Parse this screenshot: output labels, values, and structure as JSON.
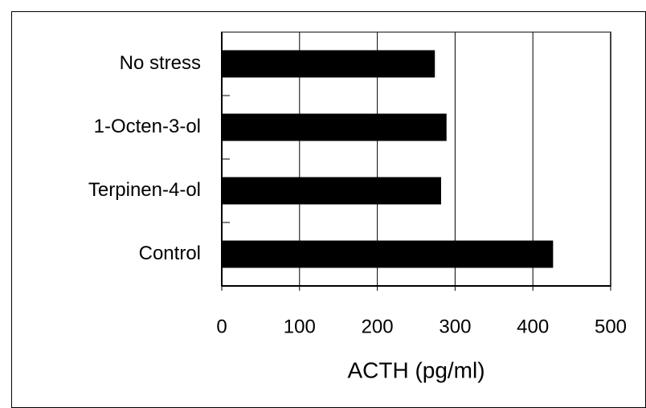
{
  "chart_data": {
    "type": "bar",
    "orientation": "horizontal",
    "categories": [
      "No stress",
      "1-Octen-3-ol",
      "Terpinen-4-ol",
      "Control"
    ],
    "values": [
      274,
      289,
      282,
      426
    ],
    "color": "#000000",
    "x_label": "ACTH (pg/ml)",
    "xlim": [
      0,
      500
    ],
    "xticks": [
      0,
      100,
      200,
      300,
      400,
      500
    ],
    "grid": true
  }
}
